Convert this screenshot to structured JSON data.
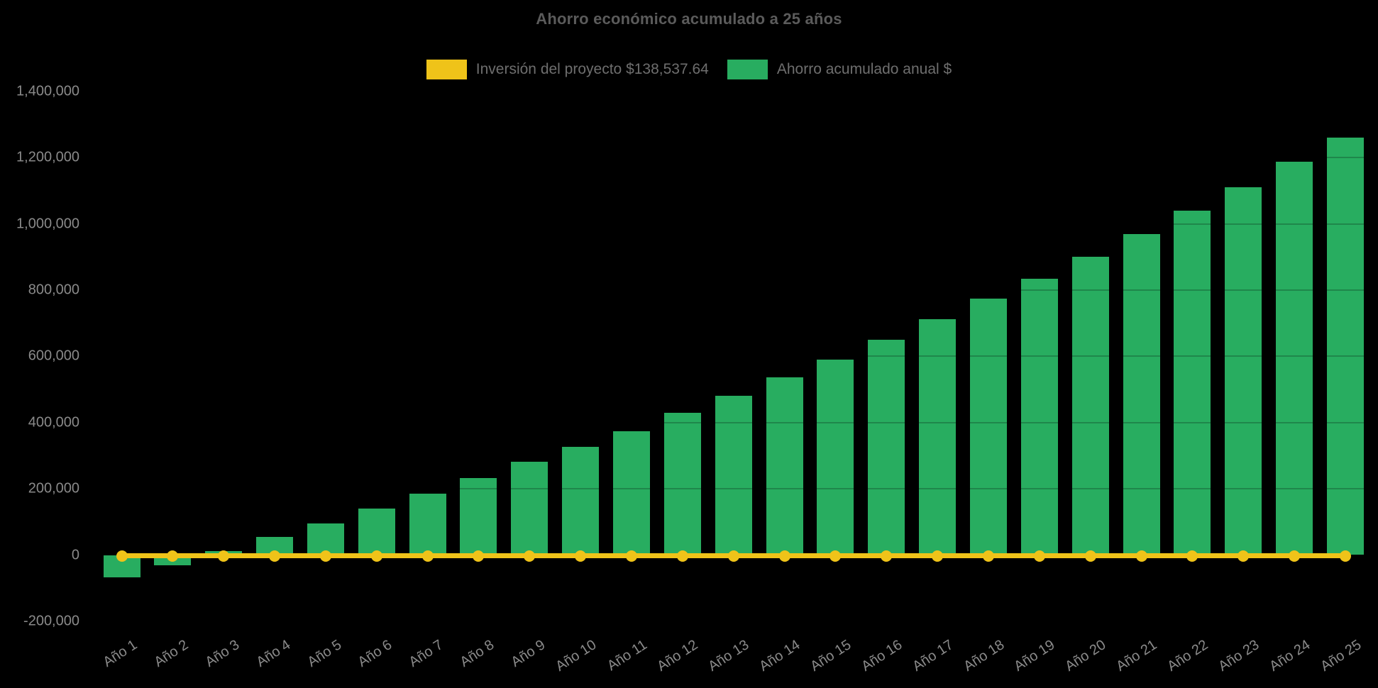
{
  "chart": {
    "title": "Ahorro económico acumulado a 25 años",
    "background_color": "#000000",
    "title_color": "#5b5b5b",
    "axis_label_color": "#8a8a8a",
    "legend_text_color": "#6e6e6e",
    "legend": [
      {
        "label": "Inversión del proyecto $138,537.64",
        "color": "#EFC319"
      },
      {
        "label": "Ahorro acumulado anual $",
        "color": "#28AD60"
      }
    ]
  },
  "chart_data": {
    "type": "bar",
    "title": "Ahorro económico acumulado a 25 años",
    "xlabel": "",
    "ylabel": "",
    "categories": [
      "Año 1",
      "Año 2",
      "Año 3",
      "Año 4",
      "Año 5",
      "Año 6",
      "Año 7",
      "Año 8",
      "Año 9",
      "Año 10",
      "Año 11",
      "Año 12",
      "Año 13",
      "Año 14",
      "Año 15",
      "Año 16",
      "Año 17",
      "Año 18",
      "Año 19",
      "Año 20",
      "Año 21",
      "Año 22",
      "Año 23",
      "Año 24",
      "Año 25"
    ],
    "series": [
      {
        "name": "Inversión del proyecto $138,537.64",
        "type": "line",
        "color": "#EFC319",
        "marker": "circle",
        "investment_label_amount": "$138,537.64",
        "plotted_constant_value": 0,
        "values": [
          0,
          0,
          0,
          0,
          0,
          0,
          0,
          0,
          0,
          0,
          0,
          0,
          0,
          0,
          0,
          0,
          0,
          0,
          0,
          0,
          0,
          0,
          0,
          0,
          0
        ]
      },
      {
        "name": "Ahorro acumulado anual $",
        "type": "bar",
        "color": "#28AD60",
        "values": [
          -67000,
          -31000,
          12000,
          55000,
          95000,
          140000,
          185000,
          232000,
          281000,
          327000,
          374000,
          429000,
          480000,
          536000,
          590000,
          650000,
          712000,
          774000,
          835000,
          900000,
          969000,
          1039000,
          1110000,
          1188000,
          1260000
        ]
      }
    ],
    "ylim": [
      -200000,
      1400000
    ],
    "ytick_step": 200000,
    "ytick_labels_bottom_to_top": [
      "-200,000",
      "0",
      "200,000",
      "400,000",
      "600,000",
      "800,000",
      "1,000,000",
      "1,200,000",
      "1,400,000"
    ],
    "legend_position": "top",
    "grid": "faint horizontal lines, barely visible over bars",
    "x_tick_rotation_deg": -33
  }
}
